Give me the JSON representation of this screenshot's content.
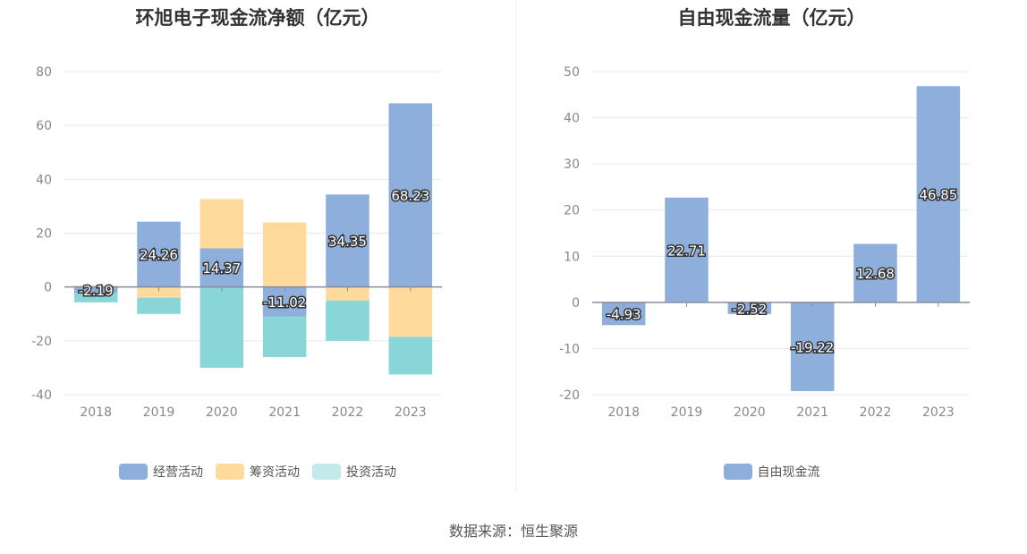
{
  "source": "数据来源：恒生聚源",
  "colors": {
    "operating": "#8eaedc",
    "financing": "#fedb9d",
    "investing": "#88d6d8",
    "investing_legend": "#c3e9ea",
    "fcf": "#8eaedc"
  },
  "chart_data": [
    {
      "type": "bar",
      "stacked": true,
      "title": "环旭电子现金流净额（亿元）",
      "categories": [
        "2018",
        "2019",
        "2020",
        "2021",
        "2022",
        "2023"
      ],
      "ylim": [
        -40,
        80
      ],
      "yticks": [
        -40,
        -20,
        0,
        20,
        40,
        60,
        80
      ],
      "grid": true,
      "legend_position": "bottom",
      "series": [
        {
          "name": "经营活动",
          "key": "operating",
          "values": [
            -2.19,
            24.26,
            14.37,
            -11.02,
            34.35,
            68.23
          ],
          "labels": [
            "-2.19",
            "24.26",
            "14.37",
            "-11.02",
            "34.35",
            "68.23"
          ]
        },
        {
          "name": "筹资活动",
          "key": "financing",
          "values": [
            0.5,
            -4,
            18.3,
            24,
            -5,
            -18.5
          ]
        },
        {
          "name": "投资活动",
          "key": "investing",
          "values": [
            -3.5,
            -6,
            -30,
            -15,
            -15,
            -14
          ]
        }
      ]
    },
    {
      "type": "bar",
      "title": "自由现金流量（亿元）",
      "categories": [
        "2018",
        "2019",
        "2020",
        "2021",
        "2022",
        "2023"
      ],
      "ylim": [
        -20,
        50
      ],
      "yticks": [
        -20,
        -10,
        0,
        10,
        20,
        30,
        40,
        50
      ],
      "grid": true,
      "legend_position": "bottom",
      "series": [
        {
          "name": "自由现金流",
          "key": "fcf",
          "values": [
            -4.93,
            22.71,
            -2.52,
            -19.22,
            12.68,
            46.85
          ],
          "labels": [
            "-4.93",
            "22.71",
            "-2.52",
            "-19.22",
            "12.68",
            "46.85"
          ]
        }
      ]
    }
  ]
}
